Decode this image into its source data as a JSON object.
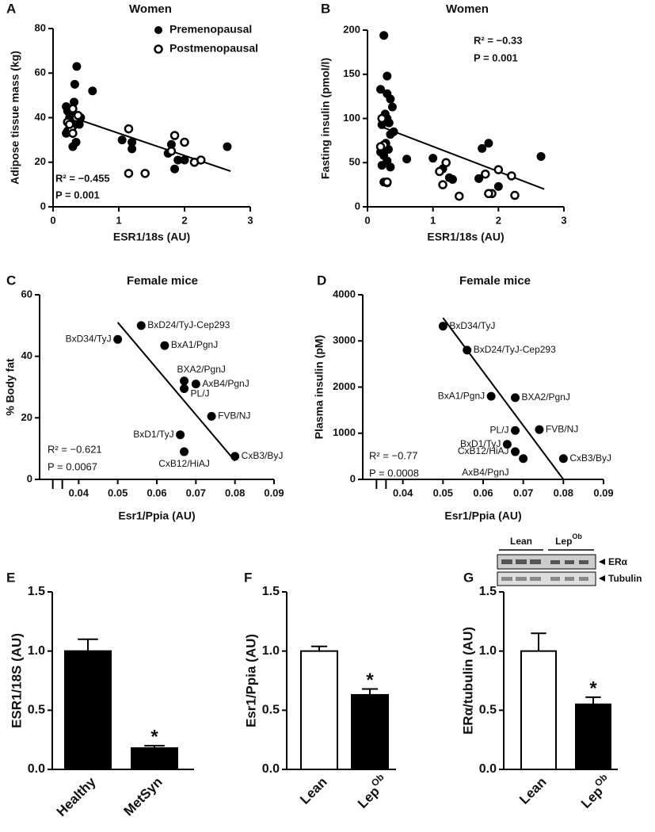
{
  "chart_data": [
    {
      "type": "scatter",
      "panel": "A",
      "title": "Women",
      "x_label": "ESR1/18s (AU)",
      "y_label": "Adipose tissue mass (kg)",
      "xlim": [
        0,
        3
      ],
      "xticks": [
        0,
        1,
        2,
        3
      ],
      "ylim": [
        0,
        80
      ],
      "yticks": [
        0,
        20,
        40,
        60,
        80
      ],
      "legend": "top-right",
      "series": [
        {
          "name": "Premenopausal",
          "color": "#000000",
          "marker": "filled",
          "x": [
            0.2,
            0.22,
            0.25,
            0.3,
            0.32,
            0.33,
            0.36,
            0.27,
            0.2,
            0.22,
            0.25,
            0.3,
            0.35,
            0.4,
            0.42,
            0.6,
            0.25,
            0.3,
            1.05,
            1.2,
            1.2,
            1.75,
            1.85,
            1.9,
            2.0,
            1.8,
            2.65
          ],
          "values": [
            45,
            43,
            42,
            44,
            47,
            55,
            63,
            38,
            33,
            34,
            35,
            27,
            29,
            37,
            40,
            52,
            40,
            36,
            30,
            26,
            29,
            24,
            17,
            21,
            21,
            28,
            27
          ]
        },
        {
          "name": "Postmenopausal",
          "color": "#000000",
          "marker": "open",
          "x": [
            0.22,
            0.28,
            0.3,
            0.35,
            0.38,
            0.3,
            1.15,
            1.15,
            1.4,
            1.85,
            1.8,
            2.0,
            2.15,
            2.25,
            0.25
          ],
          "values": [
            38,
            35,
            33,
            40,
            41,
            44,
            35,
            15,
            15,
            32,
            25,
            29,
            20,
            21,
            37
          ]
        }
      ],
      "fit": {
        "x": [
          0.2,
          2.7
        ],
        "y": [
          41,
          16
        ]
      },
      "annotations": [
        "R² = −0.455",
        "P = 0.001"
      ]
    },
    {
      "type": "scatter",
      "panel": "B",
      "title": "Women",
      "x_label": "ESR1/18s (AU)",
      "y_label": "Fasting  insulin (pmol/l)",
      "xlim": [
        0,
        3
      ],
      "xticks": [
        0,
        1,
        2,
        3
      ],
      "ylim": [
        0,
        200
      ],
      "yticks": [
        0,
        50,
        100,
        150,
        200
      ],
      "series": [
        {
          "color": "#000000",
          "marker": "filled",
          "x": [
            0.25,
            0.3,
            0.3,
            0.35,
            0.38,
            0.2,
            0.27,
            0.3,
            0.22,
            0.33,
            0.35,
            0.4,
            0.28,
            0.32,
            0.2,
            0.25,
            0.3,
            0.35,
            0.22,
            0.6,
            0.25,
            0.3,
            1.0,
            1.15,
            1.25,
            1.3,
            1.75,
            1.85,
            2.0,
            2.65,
            1.7
          ],
          "values": [
            194,
            148,
            128,
            122,
            113,
            133,
            105,
            100,
            93,
            95,
            82,
            85,
            72,
            65,
            62,
            58,
            52,
            45,
            47,
            54,
            28,
            27,
            55,
            43,
            33,
            31,
            66,
            72,
            23,
            57,
            32
          ]
        },
        {
          "color": "#000000",
          "marker": "open",
          "x": [
            0.22,
            0.25,
            0.2,
            0.3,
            1.1,
            1.15,
            1.2,
            1.4,
            1.8,
            1.9,
            1.85,
            2.0,
            2.2,
            2.25
          ],
          "values": [
            100,
            70,
            68,
            28,
            40,
            25,
            50,
            12,
            37,
            15,
            15,
            42,
            35,
            13
          ]
        }
      ],
      "fit": {
        "x": [
          0.2,
          2.7
        ],
        "y": [
          91,
          20
        ]
      },
      "annotations": [
        "R² = −0.33",
        "P = 0.001"
      ]
    },
    {
      "type": "scatter",
      "panel": "C",
      "title": "Female mice",
      "x_label": "Esr1/Ppia (AU)",
      "y_label": "% Body fat",
      "xlim": [
        0.03,
        0.09
      ],
      "xticks": [
        0.04,
        0.05,
        0.06,
        0.07,
        0.08,
        0.09
      ],
      "ylim": [
        0,
        60
      ],
      "yticks": [
        0,
        20,
        40,
        60
      ],
      "point_labels": [
        "BxD34/TyJ",
        "BxD24/TyJ-Cep293",
        "BxA1/PgnJ",
        "BXA2/PgnJ",
        "AxB4/PgnJ",
        "PL/J",
        "FVB/NJ",
        "BxD1/TyJ",
        "CxB12/HiAJ",
        "CxB3/ByJ"
      ],
      "series": [
        {
          "color": "#000000",
          "marker": "filled",
          "x": [
            0.05,
            0.056,
            0.062,
            0.067,
            0.07,
            0.067,
            0.074,
            0.066,
            0.067,
            0.08
          ],
          "values": [
            45.5,
            50,
            43.5,
            32,
            31,
            29.5,
            20.5,
            14.5,
            9,
            7.5
          ]
        }
      ],
      "fit": {
        "x": [
          0.05,
          0.08
        ],
        "y": [
          51,
          6
        ]
      },
      "annotations": [
        "R² = −0.621",
        "P = 0.0067"
      ]
    },
    {
      "type": "scatter",
      "panel": "D",
      "title": "Female mice",
      "x_label": "Esr1/Ppia (AU)",
      "y_label": "Plasma insulin (pM)",
      "xlim": [
        0.03,
        0.09
      ],
      "xticks": [
        0.04,
        0.05,
        0.06,
        0.07,
        0.08,
        0.09
      ],
      "ylim": [
        0,
        4000
      ],
      "yticks": [
        0,
        1000,
        2000,
        3000,
        4000
      ],
      "point_labels": [
        "BxD34/TyJ",
        "BxD24/TyJ-Cep293",
        "BxA1/PgnJ",
        "BXA2/PgnJ",
        "PL/J",
        "FVB/NJ",
        "BxD1/TyJ",
        "CxB12/HiAJ",
        "AxB4/PgnJ",
        "CxB3/ByJ"
      ],
      "series": [
        {
          "color": "#000000",
          "marker": "filled",
          "x": [
            0.05,
            0.056,
            0.062,
            0.068,
            0.068,
            0.074,
            0.066,
            0.068,
            0.07,
            0.08
          ],
          "values": [
            3320,
            2800,
            1800,
            1770,
            1060,
            1080,
            760,
            600,
            450,
            450
          ]
        }
      ],
      "fit": {
        "x": [
          0.05,
          0.08
        ],
        "y": [
          3500,
          0
        ]
      },
      "annotations": [
        "R² = −0.77",
        "P = 0.0008"
      ]
    },
    {
      "type": "bar",
      "panel": "E",
      "y_label": "ESR1/18S (AU)",
      "categories": [
        "Healthy",
        "MetSyn"
      ],
      "values": [
        1.0,
        0.18
      ],
      "errors": [
        0.1,
        0.02
      ],
      "colors": [
        "#000000",
        "#000000"
      ],
      "significance": "*",
      "ylim": [
        0,
        1.5
      ],
      "yticks": [
        {
          "value": 0,
          "label": "0.0"
        },
        {
          "value": 0.5,
          "label": "0.5"
        },
        {
          "value": 1,
          "label": "1.0"
        },
        {
          "value": 1.5,
          "label": "1.5"
        }
      ]
    },
    {
      "type": "bar",
      "panel": "F",
      "y_label": "Esr1/Ppia (AU)",
      "categories": [
        "Lean",
        "Lep"
      ],
      "category_superscripts": [
        null,
        "Ob"
      ],
      "values": [
        1.0,
        0.63
      ],
      "errors": [
        0.04,
        0.05
      ],
      "colors": [
        "#ffffff",
        "#000000"
      ],
      "significance": "*",
      "ylim": [
        0,
        1.5
      ],
      "yticks": [
        {
          "value": 0,
          "label": "0.0"
        },
        {
          "value": 0.5,
          "label": "0.5"
        },
        {
          "value": 1,
          "label": "1.0"
        },
        {
          "value": 1.5,
          "label": "1.5"
        }
      ]
    },
    {
      "type": "bar",
      "panel": "G",
      "y_label": "ERα/tubulin (AU)",
      "categories": [
        "Lean",
        "Lep"
      ],
      "category_superscripts": [
        null,
        "Ob"
      ],
      "values": [
        1.0,
        0.55
      ],
      "errors": [
        0.15,
        0.06
      ],
      "colors": [
        "#ffffff",
        "#000000"
      ],
      "significance": "*",
      "ylim": [
        0,
        1.5
      ],
      "yticks": [
        {
          "value": 0,
          "label": "0.0"
        },
        {
          "value": 0.5,
          "label": "0.5"
        },
        {
          "value": 1,
          "label": "1.0"
        },
        {
          "value": 1.5,
          "label": "1.5"
        }
      ],
      "blot": {
        "groups": [
          "Lean",
          "Lep"
        ],
        "group_superscript": "Ob",
        "bands": [
          "ERα",
          "Tubulin"
        ]
      }
    }
  ]
}
